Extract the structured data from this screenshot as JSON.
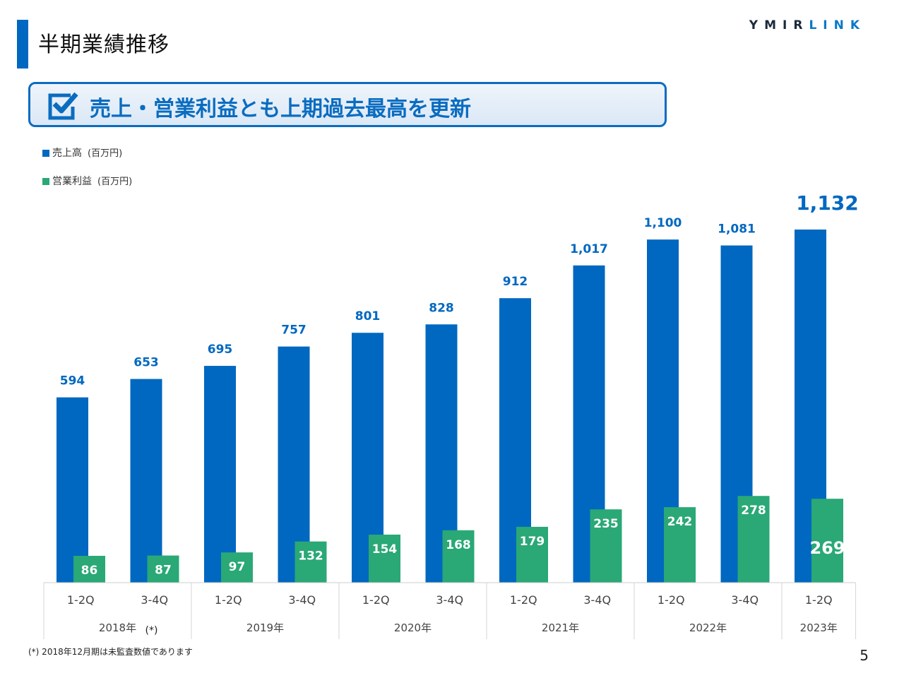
{
  "page_title": "半期業績推移",
  "logo": {
    "part1": "YMIR",
    "part2": "LINK"
  },
  "banner": {
    "text": "売上・営業利益とも上期過去最高を更新"
  },
  "colors": {
    "sales": "#0068c0",
    "profit": "#2aa876",
    "accent": "#0a6cc0"
  },
  "footnote": "(*) 2018年12月期は未監査数値であります",
  "page_number": "5",
  "chart_data": {
    "type": "bar",
    "categories": [
      "1-2Q",
      "3-4Q",
      "1-2Q",
      "3-4Q",
      "1-2Q",
      "3-4Q",
      "1-2Q",
      "3-4Q",
      "1-2Q",
      "3-4Q",
      "1-2Q"
    ],
    "groups": [
      {
        "label": "2018年",
        "note": "(*)",
        "span": 2
      },
      {
        "label": "2019年",
        "span": 2
      },
      {
        "label": "2020年",
        "span": 2
      },
      {
        "label": "2021年",
        "span": 2
      },
      {
        "label": "2022年",
        "span": 2
      },
      {
        "label": "2023年",
        "span": 1
      }
    ],
    "series": [
      {
        "name": "売上高",
        "unit": "(百万円)",
        "values": [
          594,
          653,
          695,
          757,
          801,
          828,
          912,
          1017,
          1100,
          1081,
          1132
        ],
        "labels": [
          "594",
          "653",
          "695",
          "757",
          "801",
          "828",
          "912",
          "1,017",
          "1,100",
          "1,081",
          "1,132"
        ]
      },
      {
        "name": "営業利益",
        "unit": "(百万円)",
        "values": [
          86,
          87,
          97,
          132,
          154,
          168,
          179,
          235,
          242,
          278,
          269
        ],
        "labels": [
          "86",
          "87",
          "97",
          "132",
          "154",
          "168",
          "179",
          "235",
          "242",
          "278",
          "269"
        ]
      }
    ],
    "ylim": [
      0,
      1200
    ],
    "grid": false,
    "legend_placement": "top-left"
  }
}
